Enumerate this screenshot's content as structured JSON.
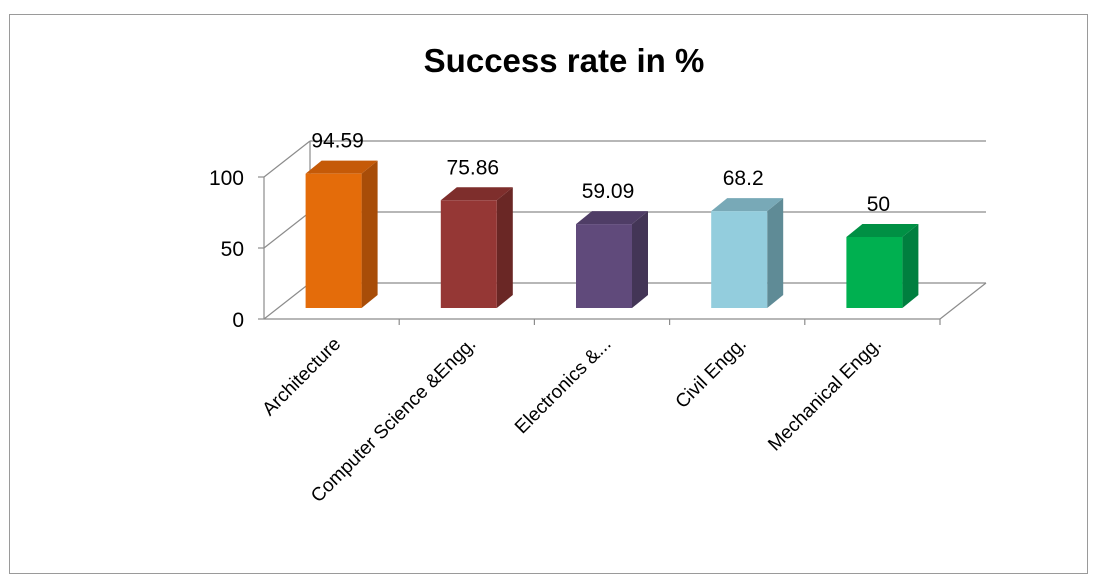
{
  "chart_data": {
    "type": "bar",
    "title": "Success rate in %",
    "categories": [
      "Architecture",
      "Computer Science &Engg.",
      "Electronics &...",
      "Civil Engg.",
      "Mechanical Engg."
    ],
    "values": [
      94.59,
      75.86,
      59.09,
      68.2,
      50
    ],
    "value_labels": [
      "94.59",
      "75.86",
      "59.09",
      "68.2",
      "50"
    ],
    "ylim": [
      0,
      100
    ],
    "yticks": [
      "0",
      "50",
      "100"
    ],
    "grid": true,
    "legend": "none",
    "style": "3d-clustered-column",
    "colors": [
      "#e46c0a",
      "#953735",
      "#604a7b",
      "#93cddd",
      "#00b050"
    ],
    "side_colors": [
      "#a84d08",
      "#6a2725",
      "#433556",
      "#5f8b96",
      "#007f3f"
    ],
    "top_colors": [
      "#c55a08",
      "#7e2e2c",
      "#4f3d66",
      "#78a9b7",
      "#009044"
    ]
  }
}
